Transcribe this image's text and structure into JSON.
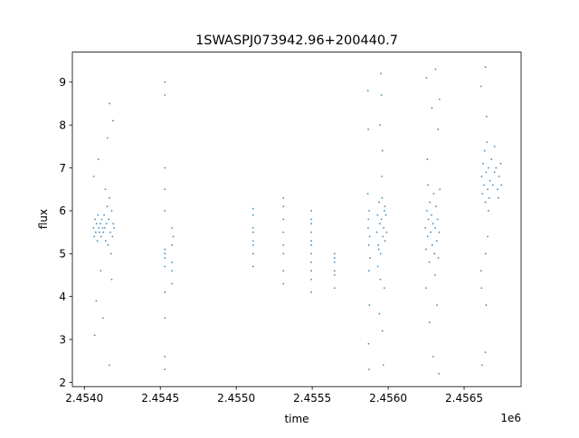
{
  "chart_data": {
    "type": "scatter",
    "title": "1SWASPJ073942.96+200440.7",
    "xlabel": "time",
    "ylabel": "flux",
    "x_offset_label": "1e6",
    "xlim": [
      2453921,
      2456875
    ],
    "ylim": [
      1.9,
      9.7
    ],
    "grid": false,
    "color": "#1f77b4",
    "x_ticks": [
      {
        "value": 2454000,
        "label": "2.4540"
      },
      {
        "value": 2454500,
        "label": "2.4545"
      },
      {
        "value": 2455000,
        "label": "2.4550"
      },
      {
        "value": 2455500,
        "label": "2.4555"
      },
      {
        "value": 2456000,
        "label": "2.4560"
      },
      {
        "value": 2456500,
        "label": "2.4565"
      }
    ],
    "y_ticks": [
      {
        "value": 2,
        "label": "2"
      },
      {
        "value": 3,
        "label": "3"
      },
      {
        "value": 4,
        "label": "4"
      },
      {
        "value": 5,
        "label": "5"
      },
      {
        "value": 6,
        "label": "6"
      },
      {
        "value": 7,
        "label": "7"
      },
      {
        "value": 8,
        "label": "8"
      },
      {
        "value": 9,
        "label": "9"
      }
    ],
    "points": [
      [
        2454060,
        5.6
      ],
      [
        2454065,
        5.4
      ],
      [
        2454070,
        5.8
      ],
      [
        2454075,
        5.5
      ],
      [
        2454080,
        5.7
      ],
      [
        2454085,
        5.3
      ],
      [
        2454090,
        5.9
      ],
      [
        2454095,
        5.6
      ],
      [
        2454100,
        5.5
      ],
      [
        2454105,
        5.7
      ],
      [
        2454110,
        5.4
      ],
      [
        2454115,
        5.8
      ],
      [
        2454120,
        5.6
      ],
      [
        2454125,
        5.5
      ],
      [
        2454130,
        5.9
      ],
      [
        2454135,
        5.6
      ],
      [
        2454140,
        5.3
      ],
      [
        2454145,
        5.7
      ],
      [
        2454150,
        6.1
      ],
      [
        2454155,
        5.2
      ],
      [
        2454160,
        5.8
      ],
      [
        2454165,
        6.3
      ],
      [
        2454170,
        5.5
      ],
      [
        2454175,
        5.0
      ],
      [
        2454180,
        6.0
      ],
      [
        2454185,
        5.4
      ],
      [
        2454190,
        5.7
      ],
      [
        2454195,
        5.6
      ],
      [
        2454062,
        6.8
      ],
      [
        2454078,
        3.9
      ],
      [
        2454092,
        7.2
      ],
      [
        2454108,
        4.6
      ],
      [
        2454122,
        3.5
      ],
      [
        2454138,
        6.5
      ],
      [
        2454152,
        7.7
      ],
      [
        2454068,
        3.1
      ],
      [
        2454165,
        8.5
      ],
      [
        2454165,
        2.4
      ],
      [
        2454188,
        8.1
      ],
      [
        2454180,
        4.4
      ],
      [
        2454530,
        4.9
      ],
      [
        2454530,
        5.1
      ],
      [
        2454530,
        4.7
      ],
      [
        2454530,
        5.0
      ],
      [
        2454530,
        6.0
      ],
      [
        2454530,
        7.0
      ],
      [
        2454530,
        8.7
      ],
      [
        2454530,
        9.0
      ],
      [
        2454530,
        3.5
      ],
      [
        2454530,
        2.6
      ],
      [
        2454530,
        2.3
      ],
      [
        2454530,
        4.1
      ],
      [
        2454530,
        6.5
      ],
      [
        2454576,
        5.2
      ],
      [
        2454576,
        4.8
      ],
      [
        2454576,
        5.6
      ],
      [
        2454576,
        4.6
      ],
      [
        2454576,
        4.3
      ],
      [
        2454585,
        5.4
      ],
      [
        2455111,
        5.6
      ],
      [
        2455111,
        5.3
      ],
      [
        2455111,
        5.9
      ],
      [
        2455111,
        5.0
      ],
      [
        2455111,
        6.05
      ],
      [
        2455111,
        4.7
      ],
      [
        2455111,
        5.5
      ],
      [
        2455111,
        5.2
      ],
      [
        2455310,
        5.5
      ],
      [
        2455310,
        5.2
      ],
      [
        2455310,
        6.3
      ],
      [
        2455310,
        4.6
      ],
      [
        2455310,
        4.3
      ],
      [
        2455310,
        5.8
      ],
      [
        2455310,
        5.0
      ],
      [
        2455310,
        6.1
      ],
      [
        2455494,
        5.0
      ],
      [
        2455494,
        5.5
      ],
      [
        2455494,
        6.0
      ],
      [
        2455494,
        4.6
      ],
      [
        2455494,
        4.1
      ],
      [
        2455494,
        5.3
      ],
      [
        2455494,
        5.8
      ],
      [
        2455494,
        4.8
      ],
      [
        2455494,
        5.2
      ],
      [
        2455494,
        4.4
      ],
      [
        2455494,
        5.7
      ],
      [
        2455647,
        4.5
      ],
      [
        2455647,
        4.8
      ],
      [
        2455647,
        5.0
      ],
      [
        2455647,
        4.2
      ],
      [
        2455647,
        4.6
      ],
      [
        2455647,
        4.9
      ],
      [
        2455868,
        5.6
      ],
      [
        2455872,
        5.2
      ],
      [
        2455875,
        6.0
      ],
      [
        2455870,
        5.8
      ],
      [
        2455878,
        5.4
      ],
      [
        2455866,
        6.4
      ],
      [
        2455880,
        4.9
      ],
      [
        2455873,
        4.6
      ],
      [
        2455869,
        7.9
      ],
      [
        2455876,
        3.8
      ],
      [
        2455871,
        2.9
      ],
      [
        2455867,
        8.8
      ],
      [
        2455874,
        2.3
      ],
      [
        2455925,
        5.5
      ],
      [
        2455930,
        5.9
      ],
      [
        2455935,
        5.2
      ],
      [
        2455940,
        6.2
      ],
      [
        2455945,
        5.7
      ],
      [
        2455950,
        5.0
      ],
      [
        2455955,
        5.8
      ],
      [
        2455960,
        6.3
      ],
      [
        2455965,
        5.4
      ],
      [
        2455970,
        5.6
      ],
      [
        2455975,
        6.0
      ],
      [
        2455980,
        5.3
      ],
      [
        2455985,
        5.9
      ],
      [
        2455990,
        5.5
      ],
      [
        2455932,
        4.7
      ],
      [
        2455948,
        4.4
      ],
      [
        2455958,
        6.8
      ],
      [
        2455962,
        7.4
      ],
      [
        2455952,
        9.2
      ],
      [
        2455955,
        8.7
      ],
      [
        2455942,
        3.6
      ],
      [
        2455962,
        3.2
      ],
      [
        2455968,
        2.4
      ],
      [
        2455945,
        8.0
      ],
      [
        2455975,
        4.2
      ],
      [
        2455938,
        5.1
      ],
      [
        2455978,
        6.1
      ],
      [
        2456245,
        5.6
      ],
      [
        2456250,
        5.1
      ],
      [
        2456255,
        6.0
      ],
      [
        2456260,
        5.4
      ],
      [
        2456265,
        5.8
      ],
      [
        2456270,
        4.8
      ],
      [
        2456275,
        6.2
      ],
      [
        2456280,
        5.5
      ],
      [
        2456285,
        5.9
      ],
      [
        2456290,
        5.2
      ],
      [
        2456295,
        5.7
      ],
      [
        2456300,
        6.4
      ],
      [
        2456305,
        5.0
      ],
      [
        2456310,
        5.6
      ],
      [
        2456315,
        6.1
      ],
      [
        2456320,
        5.3
      ],
      [
        2456325,
        5.8
      ],
      [
        2456330,
        4.9
      ],
      [
        2456335,
        5.5
      ],
      [
        2456340,
        6.5
      ],
      [
        2456248,
        4.2
      ],
      [
        2456258,
        7.2
      ],
      [
        2456272,
        3.4
      ],
      [
        2456288,
        8.4
      ],
      [
        2456296,
        2.6
      ],
      [
        2456312,
        9.3
      ],
      [
        2456322,
        3.8
      ],
      [
        2456334,
        2.2
      ],
      [
        2456252,
        9.1
      ],
      [
        2456328,
        7.9
      ],
      [
        2456308,
        4.5
      ],
      [
        2456338,
        8.6
      ],
      [
        2456262,
        6.6
      ],
      [
        2456615,
        6.8
      ],
      [
        2456620,
        6.4
      ],
      [
        2456625,
        7.1
      ],
      [
        2456630,
        6.6
      ],
      [
        2456635,
        7.4
      ],
      [
        2456640,
        6.2
      ],
      [
        2456645,
        6.9
      ],
      [
        2456650,
        7.6
      ],
      [
        2456655,
        6.5
      ],
      [
        2456660,
        7.0
      ],
      [
        2456665,
        6.3
      ],
      [
        2456670,
        6.7
      ],
      [
        2456680,
        7.2
      ],
      [
        2456690,
        6.6
      ],
      [
        2456700,
        6.9
      ],
      [
        2456710,
        7.0
      ],
      [
        2456720,
        6.5
      ],
      [
        2456730,
        6.8
      ],
      [
        2456740,
        7.1
      ],
      [
        2456745,
        6.6
      ],
      [
        2456612,
        8.9
      ],
      [
        2456612,
        4.6
      ],
      [
        2456618,
        2.4
      ],
      [
        2456640,
        9.35
      ],
      [
        2456642,
        5.0
      ],
      [
        2456645,
        3.8
      ],
      [
        2456648,
        8.2
      ],
      [
        2456640,
        2.7
      ],
      [
        2456655,
        5.4
      ],
      [
        2456615,
        4.2
      ],
      [
        2456660,
        6.0
      ],
      [
        2456700,
        7.5
      ],
      [
        2456725,
        6.3
      ]
    ]
  }
}
